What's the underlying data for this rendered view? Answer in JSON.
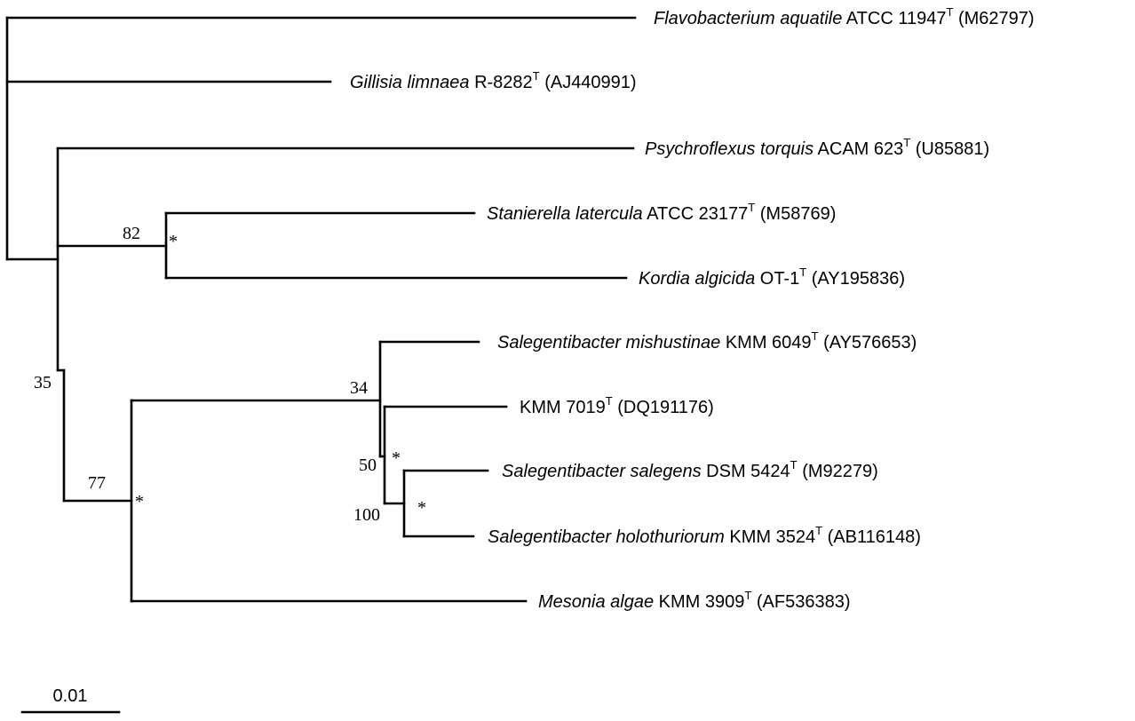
{
  "tree": {
    "taxa": [
      {
        "id": "t1",
        "species": "Flavobacterium aquatile",
        "strain": "ATCC 11947",
        "type_mark": "T",
        "accession": "(M62797)"
      },
      {
        "id": "t2",
        "species": "Gillisia limnaea",
        "strain": "R-8282",
        "type_mark": "T",
        "accession": "(AJ440991)"
      },
      {
        "id": "t3",
        "species": "Psychroflexus torquis",
        "strain": "ACAM 623",
        "type_mark": "T",
        "accession": "(U85881)"
      },
      {
        "id": "t4",
        "species": "Stanierella latercula",
        "strain": "ATCC 23177",
        "type_mark": "T",
        "accession": "(M58769)"
      },
      {
        "id": "t5",
        "species": "Kordia algicida",
        "strain": "OT-1",
        "type_mark": "T",
        "accession": "(AY195836)"
      },
      {
        "id": "t6",
        "species": "Salegentibacter mishustinae",
        "strain": "KMM 6049",
        "type_mark": "T",
        "accession": "(AY576653)"
      },
      {
        "id": "t7",
        "species": "",
        "strain": "KMM 7019",
        "type_mark": "T",
        "accession": "(DQ191176)"
      },
      {
        "id": "t8",
        "species": "Salegentibacter salegens",
        "strain": "DSM 5424",
        "type_mark": "T",
        "accession": "(M92279)"
      },
      {
        "id": "t9",
        "species": "Salegentibacter holothuriorum",
        "strain": "KMM 3524",
        "type_mark": "T",
        "accession": "(AB116148)"
      },
      {
        "id": "t10",
        "species": "Mesonia algae",
        "strain": "KMM 3909",
        "type_mark": "T",
        "accession": "(AF536383)"
      }
    ],
    "support_values": [
      {
        "id": "s82",
        "value": "82"
      },
      {
        "id": "s35",
        "value": "35"
      },
      {
        "id": "s34",
        "value": "34"
      },
      {
        "id": "s77",
        "value": "77"
      },
      {
        "id": "s50",
        "value": "50"
      },
      {
        "id": "s100",
        "value": "100"
      }
    ],
    "asterisk_marker": "*",
    "scale_bar_label": "0.01"
  }
}
